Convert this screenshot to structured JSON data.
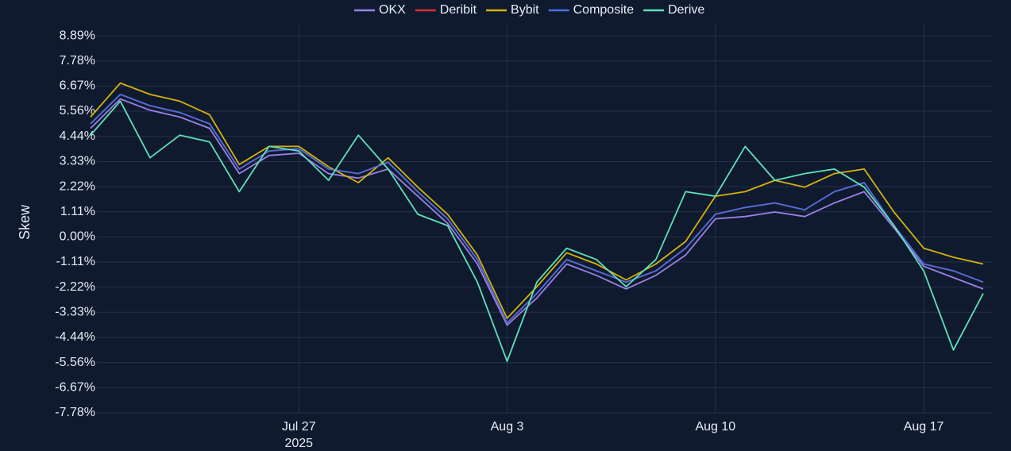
{
  "chart_data": {
    "type": "line",
    "y_label": "Skew",
    "x": [
      "2025-07-20",
      "2025-07-21",
      "2025-07-22",
      "2025-07-23",
      "2025-07-24",
      "2025-07-25",
      "2025-07-26",
      "2025-07-27",
      "2025-07-28",
      "2025-07-29",
      "2025-07-30",
      "2025-07-31",
      "2025-08-01",
      "2025-08-02",
      "2025-08-03",
      "2025-08-04",
      "2025-08-05",
      "2025-08-06",
      "2025-08-07",
      "2025-08-08",
      "2025-08-09",
      "2025-08-10",
      "2025-08-11",
      "2025-08-12",
      "2025-08-13",
      "2025-08-14",
      "2025-08-15",
      "2025-08-16",
      "2025-08-17",
      "2025-08-18",
      "2025-08-19"
    ],
    "xlim": [
      "2025-07-20",
      "2025-08-19"
    ],
    "xticks": [
      {
        "value": "2025-07-27",
        "label": "Jul 27 2025"
      },
      {
        "value": "2025-08-03",
        "label": "Aug 3"
      },
      {
        "value": "2025-08-10",
        "label": "Aug 10"
      },
      {
        "value": "2025-08-17",
        "label": "Aug 17"
      }
    ],
    "ylim": [
      -7.78,
      9.42
    ],
    "yticks": [
      {
        "value": 8.89,
        "label": "8.89%"
      },
      {
        "value": 7.78,
        "label": "7.78%"
      },
      {
        "value": 6.67,
        "label": "6.67%"
      },
      {
        "value": 5.56,
        "label": "5.56%"
      },
      {
        "value": 4.44,
        "label": "4.44%"
      },
      {
        "value": 3.33,
        "label": "3.33%"
      },
      {
        "value": 2.22,
        "label": "2.22%"
      },
      {
        "value": 1.11,
        "label": "1.11%"
      },
      {
        "value": 0,
        "label": "0.00%"
      },
      {
        "value": -1.11,
        "label": "-1.11%"
      },
      {
        "value": -2.22,
        "label": "-2.22%"
      },
      {
        "value": -3.33,
        "label": "-3.33%"
      },
      {
        "value": -4.44,
        "label": "-4.44%"
      },
      {
        "value": -5.56,
        "label": "-5.56%"
      },
      {
        "value": -6.67,
        "label": "-6.67%"
      },
      {
        "value": -7.78,
        "label": "-7.78%"
      }
    ],
    "grid": true,
    "series": [
      {
        "name": "OKX",
        "color": "#9b80e6",
        "values": [
          4.8,
          6.1,
          5.6,
          5.3,
          4.8,
          2.8,
          3.6,
          3.7,
          2.8,
          2.6,
          3.0,
          1.8,
          0.6,
          -1.2,
          -3.9,
          -2.7,
          -1.2,
          -1.7,
          -2.3,
          -1.7,
          -0.8,
          0.8,
          0.9,
          1.1,
          0.9,
          1.5,
          2.0,
          0.4,
          -1.3,
          -1.8,
          -2.3
        ]
      },
      {
        "name": "Deribit",
        "color": "#e0302a",
        "values": [
          5.0,
          6.3,
          5.8,
          5.5,
          5.0,
          3.0,
          3.8,
          3.9,
          3.0,
          2.8,
          3.3,
          2.0,
          0.8,
          -1.0,
          -3.8,
          -2.5,
          -1.0,
          -1.5,
          -2.0,
          -1.5,
          -0.5,
          1.0,
          1.3,
          1.5,
          1.2,
          2.0,
          2.4,
          0.5,
          -1.2,
          -1.5,
          -2.0
        ]
      },
      {
        "name": "Bybit",
        "color": "#d4b20a",
        "values": [
          5.3,
          6.8,
          6.3,
          6.0,
          5.4,
          3.2,
          4.0,
          4.0,
          3.1,
          2.4,
          3.5,
          2.2,
          1.0,
          -0.8,
          -3.6,
          -2.2,
          -0.7,
          -1.2,
          -1.9,
          -1.2,
          -0.2,
          1.8,
          2.0,
          2.5,
          2.2,
          2.8,
          3.0,
          1.1,
          -0.5,
          -0.9,
          -1.2
        ]
      },
      {
        "name": "Composite",
        "color": "#4a6fe0",
        "values": [
          5.0,
          6.3,
          5.8,
          5.5,
          5.0,
          3.0,
          3.8,
          3.9,
          3.0,
          2.8,
          3.3,
          2.0,
          0.8,
          -1.0,
          -3.8,
          -2.5,
          -1.0,
          -1.5,
          -2.0,
          -1.5,
          -0.5,
          1.0,
          1.3,
          1.5,
          1.2,
          2.0,
          2.4,
          0.5,
          -1.2,
          -1.5,
          -2.0
        ]
      },
      {
        "name": "Derive",
        "color": "#5ee0b8",
        "values": [
          4.5,
          6.0,
          3.5,
          4.5,
          4.2,
          2.0,
          4.0,
          3.8,
          2.5,
          4.5,
          3.0,
          1.0,
          0.5,
          -2.0,
          -5.5,
          -2.0,
          -0.5,
          -1.0,
          -2.2,
          -1.0,
          2.0,
          1.8,
          4.0,
          2.5,
          2.8,
          3.0,
          2.2,
          0.5,
          -1.5,
          -5.0,
          -2.5
        ]
      }
    ]
  }
}
